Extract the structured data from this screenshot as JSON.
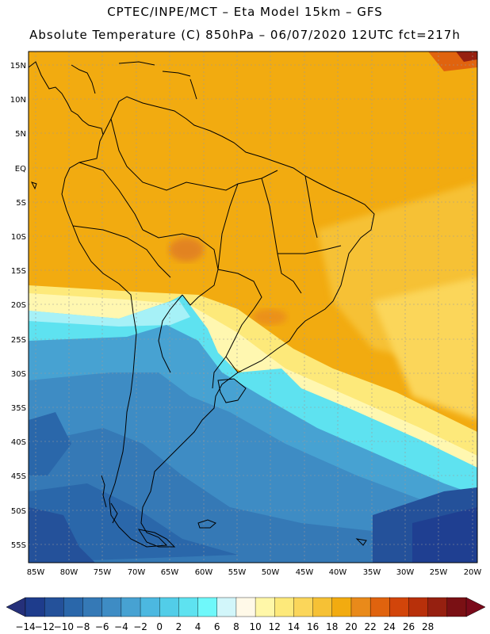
{
  "header": {
    "line1": "CPTEC/INPE/MCT –  Eta Model 15km – GFS",
    "line2": "Absolute Temperature (C) 850hPa – 06/07/2020 12UTC fct=217h"
  },
  "axes": {
    "lat_labels": [
      "15N",
      "10N",
      "5N",
      "EQ",
      "5S",
      "10S",
      "15S",
      "20S",
      "25S",
      "30S",
      "35S",
      "40S",
      "45S",
      "50S",
      "55S"
    ],
    "lon_labels": [
      "85W",
      "80W",
      "75W",
      "70W",
      "65W",
      "60W",
      "55W",
      "50W",
      "45W",
      "40W",
      "35W",
      "30W",
      "25W",
      "20W"
    ]
  },
  "colorbar": {
    "labels": [
      "-14",
      "-12",
      "-10",
      "-8",
      "-6",
      "-4",
      "-2",
      "0",
      "2",
      "4",
      "6",
      "8",
      "10",
      "12",
      "14",
      "16",
      "18",
      "20",
      "22",
      "24",
      "26",
      "28"
    ],
    "colors": [
      "#1e3c8c",
      "#24519a",
      "#2a67aa",
      "#3579b6",
      "#3e8cc4",
      "#47a2d2",
      "#4cb8e0",
      "#52cde8",
      "#5ee2f0",
      "#6ff8fa",
      "#d2f6fa",
      "#fff9e8",
      "#fff7a8",
      "#fde97a",
      "#fbd65a",
      "#f6c135",
      "#f2ab10",
      "#e98a1a",
      "#e0630e",
      "#d2450a",
      "#b8300a",
      "#962010",
      "#7a1014"
    ],
    "under_color": "#25307a",
    "over_color": "#7a0a1a"
  },
  "colors": {
    "warm_bg": "#f2ab10",
    "land_warm": "#eda313",
    "hot_spot": "#df7a28",
    "pale_yellow": "#fde97a",
    "very_pale": "#fff7b0",
    "cyan": "#5ee2f0",
    "light_cyan": "#8eeff6",
    "mid_blue": "#3e9fd2",
    "dark_blue": "#2a67aa",
    "deep_blue": "#1f3f91",
    "coast": "#000000"
  }
}
